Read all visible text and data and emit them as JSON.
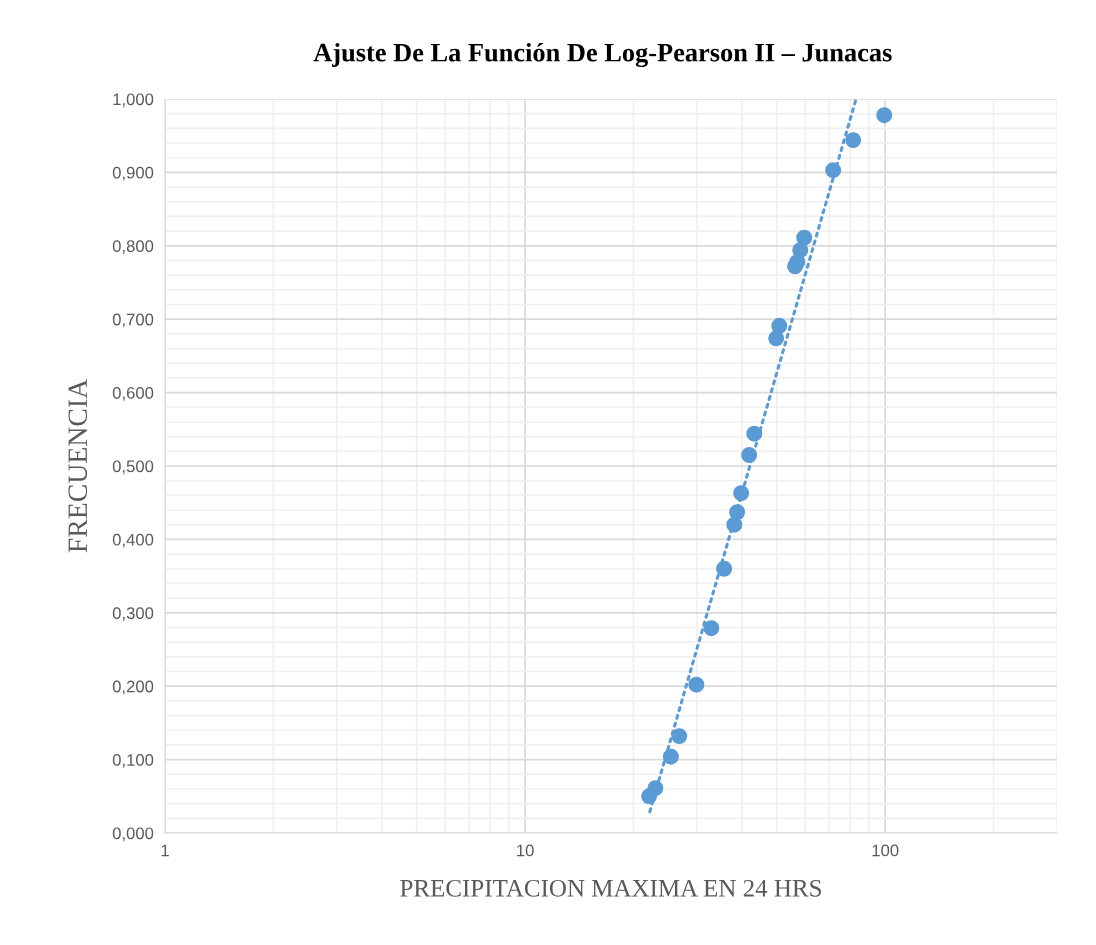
{
  "chart_data": {
    "type": "scatter",
    "title": "Ajuste De La Función De Log-Pearson II – Junacas",
    "xlabel": "PRECIPITACION MAXIMA EN 24 HRS",
    "ylabel": "FRECUENCIA",
    "log": "x",
    "grid": true,
    "legend": false,
    "xlim": [
      1,
      300
    ],
    "xticks": [
      1,
      10,
      100
    ],
    "ylim": [
      0,
      1
    ],
    "yticks": [
      {
        "value": 0,
        "label": "0,000"
      },
      {
        "value": 0.1,
        "label": "0,100"
      },
      {
        "value": 0.2,
        "label": "0,200"
      },
      {
        "value": 0.3,
        "label": "0,300"
      },
      {
        "value": 0.4,
        "label": "0,400"
      },
      {
        "value": 0.5,
        "label": "0,500"
      },
      {
        "value": 0.6,
        "label": "0,600"
      },
      {
        "value": 0.7,
        "label": "0,700"
      },
      {
        "value": 0.8,
        "label": "0,800"
      },
      {
        "value": 0.9,
        "label": "0,900"
      },
      {
        "value": 1,
        "label": "1,000"
      }
    ],
    "series": [
      {
        "marker": "circle",
        "color": "#5b9bd5",
        "x": [
          22.1,
          23.0,
          25.4,
          26.8,
          29.9,
          32.9,
          35.7,
          38.1,
          38.8,
          39.8,
          41.9,
          43.3,
          49.8,
          50.8,
          56.2,
          57.0,
          58.1,
          59.6,
          71.7,
          81.5,
          99.4
        ],
        "values": [
          0.05,
          0.061,
          0.104,
          0.132,
          0.202,
          0.279,
          0.36,
          0.42,
          0.437,
          0.463,
          0.515,
          0.544,
          0.674,
          0.691,
          0.772,
          0.778,
          0.794,
          0.811,
          0.903,
          0.944,
          0.978
        ]
      },
      {
        "type": "line",
        "color": "#5b9bd5",
        "line_style": "dotted",
        "marker": "none",
        "x": [
          22.2,
          83.0
        ],
        "values": [
          0.029,
          1.0
        ]
      }
    ]
  }
}
